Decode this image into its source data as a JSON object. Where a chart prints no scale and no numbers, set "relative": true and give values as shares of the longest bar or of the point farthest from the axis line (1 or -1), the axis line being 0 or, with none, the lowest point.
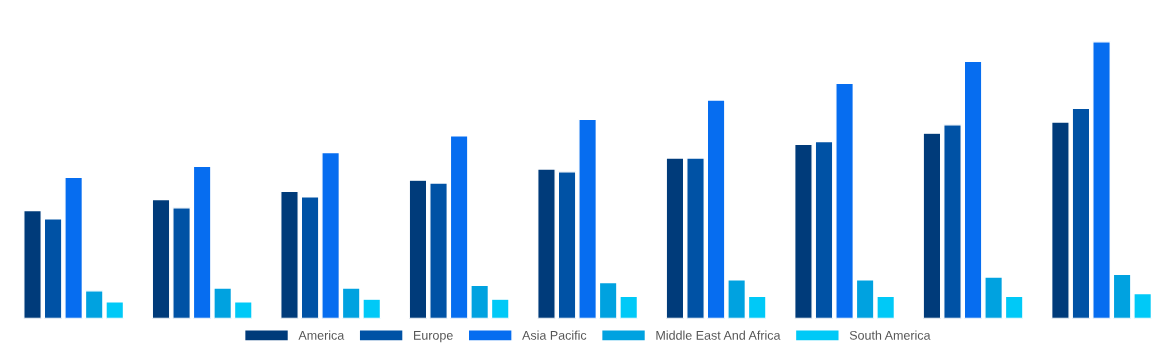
{
  "chart_data": {
    "type": "bar",
    "relative": true,
    "categories": [
      null,
      null,
      null,
      null,
      null,
      null,
      null,
      null,
      null
    ],
    "series": [
      {
        "name": "America",
        "color": "#003b7a",
        "values": [
          0.39,
          0.43,
          0.46,
          0.5,
          0.54,
          0.58,
          0.63,
          0.67,
          0.71
        ]
      },
      {
        "name": "Europe",
        "color": "#0052a5",
        "values": [
          0.36,
          0.4,
          0.44,
          0.49,
          0.53,
          0.58,
          0.64,
          0.7,
          0.76
        ]
      },
      {
        "name": "Asia Pacific",
        "color": "#066df0",
        "values": [
          0.51,
          0.55,
          0.6,
          0.66,
          0.72,
          0.79,
          0.85,
          0.93,
          1
        ]
      },
      {
        "name": "Middle East And Africa",
        "color": "#00a2e0",
        "values": [
          0.1,
          0.11,
          0.11,
          0.12,
          0.13,
          0.14,
          0.14,
          0.15,
          0.16
        ]
      },
      {
        "name": "South America",
        "color": "#00c9f7",
        "values": [
          0.06,
          0.06,
          0.07,
          0.07,
          0.08,
          0.08,
          0.08,
          0.08,
          0.09
        ]
      }
    ],
    "legend": "bottom",
    "grid": false
  }
}
